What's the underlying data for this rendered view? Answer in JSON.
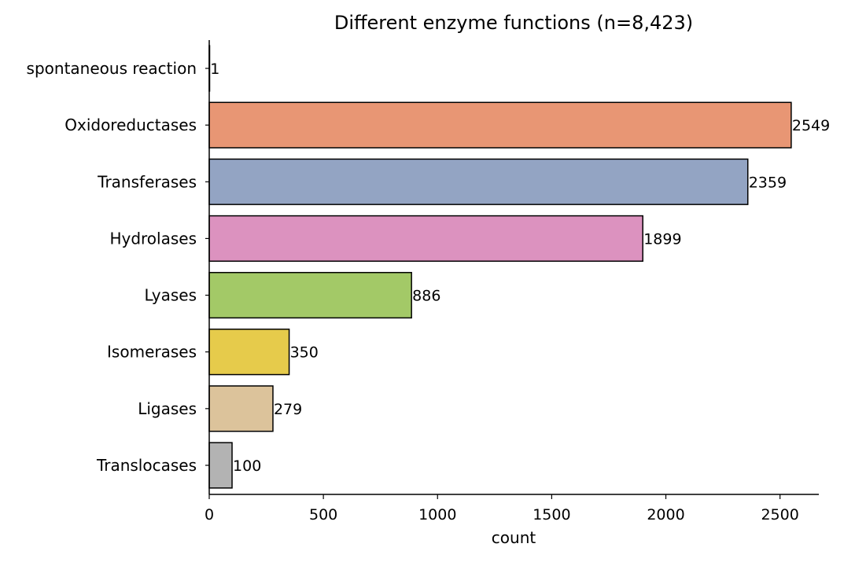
{
  "chart_data": {
    "type": "bar",
    "orientation": "horizontal",
    "title": "Different enzyme functions (n=8,423)",
    "xlabel": "count",
    "ylabel": "",
    "categories": [
      "spontaneous reaction",
      "Oxidoreductases",
      "Transferases",
      "Hydrolases",
      "Lyases",
      "Isomerases",
      "Ligases",
      "Translocases"
    ],
    "values": [
      1,
      2549,
      2359,
      1899,
      886,
      350,
      279,
      100
    ],
    "data_labels": [
      "1",
      "2549",
      "2359",
      "1899",
      "886",
      "350",
      "279",
      "100"
    ],
    "colors": [
      "#66c2a5",
      "#e89674",
      "#93a4c3",
      "#dc92bf",
      "#a3c967",
      "#e6cb4b",
      "#dcc39b",
      "#b3b3b3"
    ],
    "edgecolor": "#000000",
    "xlim": [
      0,
      2670
    ],
    "xticks": [
      0,
      500,
      1000,
      1500,
      2000,
      2500
    ],
    "xtick_labels": [
      "0",
      "500",
      "1000",
      "1500",
      "2000",
      "2500"
    ],
    "grid": false,
    "legend": "none",
    "spines": [
      "left",
      "bottom"
    ]
  }
}
